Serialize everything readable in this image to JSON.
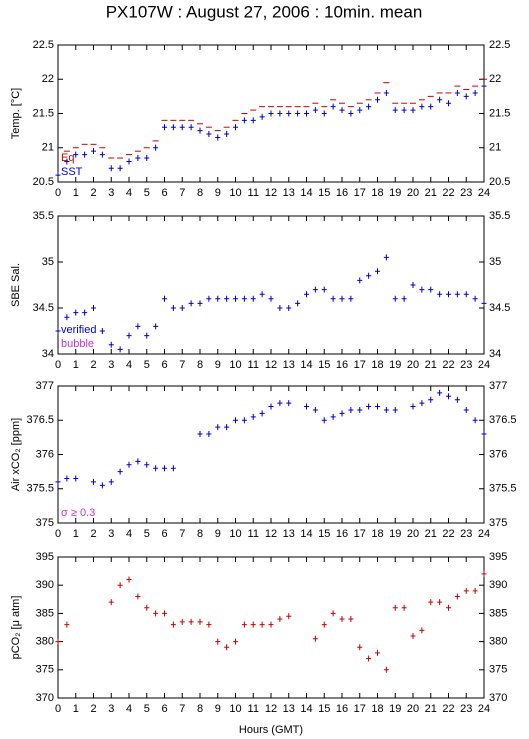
{
  "chart_data": [
    {
      "type": "scatter",
      "title": "PX107W : August 27, 2006 : 10min. mean",
      "y_label": "Temp. [°C]",
      "x": [
        0,
        0.5,
        1,
        1.5,
        2,
        2.5,
        3,
        3.5,
        4,
        4.5,
        5,
        5.5,
        6,
        6.5,
        7,
        7.5,
        8,
        8.5,
        9,
        9.5,
        10,
        10.5,
        11,
        11.5,
        12,
        12.5,
        13,
        13.5,
        14,
        14.5,
        15,
        15.5,
        16,
        16.5,
        17,
        17.5,
        18,
        18.5,
        19,
        19.5,
        20,
        20.5,
        21,
        21.5,
        22,
        22.5,
        23,
        23.5,
        24
      ],
      "xlim": [
        0,
        24
      ],
      "xticks": [
        0,
        1,
        2,
        3,
        4,
        5,
        6,
        7,
        8,
        9,
        10,
        11,
        12,
        13,
        14,
        15,
        16,
        17,
        18,
        19,
        20,
        21,
        22,
        23,
        24
      ],
      "ylim": [
        20.5,
        22.5
      ],
      "yticks": [
        20.5,
        21,
        21.5,
        22,
        22.5
      ],
      "series": [
        {
          "name": "Eq",
          "color": "#cc0000",
          "marker": "-",
          "values": [
            null,
            20.95,
            21.0,
            21.05,
            21.05,
            21.0,
            20.85,
            20.85,
            20.9,
            20.95,
            21.0,
            21.1,
            21.4,
            21.4,
            21.4,
            21.4,
            21.35,
            21.3,
            21.25,
            21.3,
            21.4,
            21.5,
            21.55,
            21.6,
            21.6,
            21.6,
            21.6,
            21.6,
            21.6,
            21.65,
            21.6,
            21.7,
            21.65,
            21.6,
            21.65,
            21.7,
            21.8,
            21.95,
            21.65,
            21.65,
            21.65,
            21.7,
            21.75,
            21.8,
            21.8,
            21.9,
            21.85,
            21.9,
            22.0
          ]
        },
        {
          "name": "SST",
          "color": "#0000cc",
          "marker": "+",
          "values": [
            20.6,
            20.8,
            20.9,
            20.9,
            20.95,
            20.9,
            20.7,
            20.7,
            20.8,
            20.85,
            20.85,
            21.0,
            21.3,
            21.3,
            21.3,
            21.3,
            21.25,
            21.2,
            21.15,
            21.2,
            21.3,
            21.4,
            21.4,
            21.45,
            21.5,
            21.5,
            21.5,
            21.5,
            21.5,
            21.55,
            21.5,
            21.6,
            21.55,
            21.5,
            21.55,
            21.6,
            21.7,
            21.8,
            21.55,
            21.55,
            21.55,
            21.6,
            21.6,
            21.7,
            21.65,
            21.8,
            21.75,
            21.8,
            21.9
          ]
        }
      ]
    },
    {
      "type": "scatter",
      "y_label": "SBE Sal.",
      "x": [
        0,
        0.5,
        1,
        1.5,
        2,
        2.5,
        3,
        3.5,
        4,
        4.5,
        5,
        5.5,
        6,
        6.5,
        7,
        7.5,
        8,
        8.5,
        9,
        9.5,
        10,
        10.5,
        11,
        11.5,
        12,
        12.5,
        13,
        13.5,
        14,
        14.5,
        15,
        15.5,
        16,
        16.5,
        17,
        17.5,
        18,
        18.5,
        19,
        19.5,
        20,
        20.5,
        21,
        21.5,
        22,
        22.5,
        23,
        23.5,
        24
      ],
      "xlim": [
        0,
        24
      ],
      "xticks": [
        0,
        1,
        2,
        3,
        4,
        5,
        6,
        7,
        8,
        9,
        10,
        11,
        12,
        13,
        14,
        15,
        16,
        17,
        18,
        19,
        20,
        21,
        22,
        23,
        24
      ],
      "ylim": [
        34,
        35.5
      ],
      "yticks": [
        34,
        34.5,
        35,
        35.5
      ],
      "series": [
        {
          "name": "verified",
          "color": "#0000cc",
          "marker": "+",
          "values": [
            34.25,
            34.4,
            34.45,
            34.45,
            34.5,
            34.25,
            34.1,
            34.05,
            34.2,
            34.3,
            34.2,
            34.3,
            34.6,
            34.5,
            34.5,
            34.55,
            34.55,
            34.6,
            34.6,
            34.6,
            34.6,
            34.6,
            34.6,
            34.65,
            34.6,
            34.5,
            34.5,
            34.55,
            34.65,
            34.7,
            34.7,
            34.6,
            34.6,
            34.6,
            34.8,
            34.85,
            34.9,
            35.05,
            34.6,
            34.6,
            34.75,
            34.7,
            34.7,
            34.65,
            34.65,
            34.65,
            34.65,
            34.6,
            34.55
          ]
        }
      ],
      "annotations": [
        {
          "text": "bubble",
          "color": "#cc33cc"
        }
      ]
    },
    {
      "type": "scatter",
      "y_label": "Air xCO₂ [ppm]",
      "x": [
        0,
        0.5,
        1,
        1.5,
        2,
        2.5,
        3,
        3.5,
        4,
        4.5,
        5,
        5.5,
        6,
        6.5,
        7,
        7.5,
        8,
        8.5,
        9,
        9.5,
        10,
        10.5,
        11,
        11.5,
        12,
        12.5,
        13,
        13.5,
        14,
        14.5,
        15,
        15.5,
        16,
        16.5,
        17,
        17.5,
        18,
        18.5,
        19,
        19.5,
        20,
        20.5,
        21,
        21.5,
        22,
        22.5,
        23,
        23.5,
        24
      ],
      "xlim": [
        0,
        24
      ],
      "xticks": [
        0,
        1,
        2,
        3,
        4,
        5,
        6,
        7,
        8,
        9,
        10,
        11,
        12,
        13,
        14,
        15,
        16,
        17,
        18,
        19,
        20,
        21,
        22,
        23,
        24
      ],
      "ylim": [
        375,
        377
      ],
      "yticks": [
        375,
        375.5,
        376,
        376.5,
        377
      ],
      "series": [
        {
          "color": "#0000cc",
          "marker": "+",
          "values": [
            375.6,
            375.65,
            375.65,
            null,
            375.6,
            375.55,
            375.6,
            375.75,
            375.85,
            375.9,
            375.85,
            375.8,
            375.8,
            375.8,
            null,
            null,
            376.3,
            376.3,
            376.4,
            376.4,
            376.5,
            376.5,
            376.55,
            376.6,
            376.7,
            376.75,
            376.75,
            null,
            376.7,
            376.65,
            376.5,
            376.55,
            376.6,
            376.65,
            376.65,
            376.7,
            376.7,
            376.65,
            376.65,
            null,
            376.7,
            376.75,
            376.8,
            376.9,
            376.85,
            376.8,
            376.65,
            376.5,
            376.3
          ]
        }
      ],
      "annotations": [
        {
          "text": "σ ≥ 0.3",
          "color": "#cc33cc"
        }
      ]
    },
    {
      "type": "scatter",
      "y_label": "pCO₂ [μ atm]",
      "x_label": "Hours (GMT)",
      "x": [
        0,
        0.5,
        1,
        1.5,
        2,
        2.5,
        3,
        3.5,
        4,
        4.5,
        5,
        5.5,
        6,
        6.5,
        7,
        7.5,
        8,
        8.5,
        9,
        9.5,
        10,
        10.5,
        11,
        11.5,
        12,
        12.5,
        13,
        13.5,
        14,
        14.5,
        15,
        15.5,
        16,
        16.5,
        17,
        17.5,
        18,
        18.5,
        19,
        19.5,
        20,
        20.5,
        21,
        21.5,
        22,
        22.5,
        23,
        23.5,
        24
      ],
      "xlim": [
        0,
        24
      ],
      "xticks": [
        0,
        1,
        2,
        3,
        4,
        5,
        6,
        7,
        8,
        9,
        10,
        11,
        12,
        13,
        14,
        15,
        16,
        17,
        18,
        19,
        20,
        21,
        22,
        23,
        24
      ],
      "ylim": [
        370,
        395
      ],
      "yticks": [
        370,
        375,
        380,
        385,
        390,
        395
      ],
      "series": [
        {
          "color": "#cc0000",
          "marker": "+",
          "values": [
            380,
            383,
            null,
            null,
            null,
            null,
            387,
            390,
            391,
            388,
            386,
            385,
            385,
            383,
            383.5,
            383.5,
            383.5,
            383,
            380,
            379,
            380,
            383,
            383,
            383,
            383,
            384,
            384.5,
            null,
            null,
            380.5,
            383,
            385,
            384,
            384,
            379,
            377,
            378,
            375,
            386,
            386,
            381,
            382,
            387,
            387,
            386,
            388,
            389,
            389,
            392
          ]
        }
      ]
    }
  ]
}
